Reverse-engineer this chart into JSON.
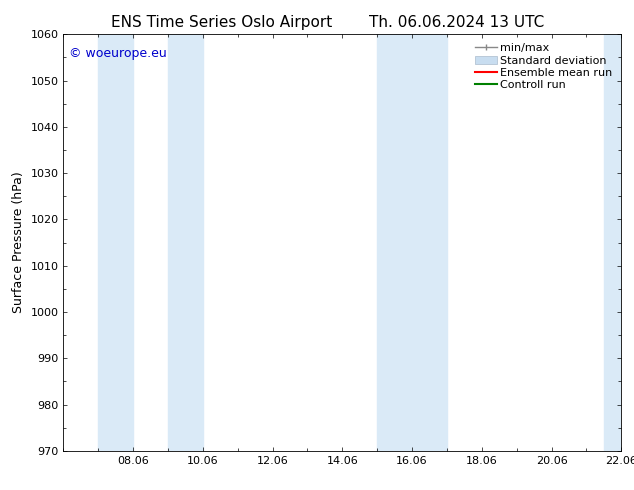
{
  "title_left": "ENS Time Series Oslo Airport",
  "title_right": "Th. 06.06.2024 13 UTC",
  "ylabel": "Surface Pressure (hPa)",
  "ylim": [
    970,
    1060
  ],
  "yticks": [
    970,
    980,
    990,
    1000,
    1010,
    1020,
    1030,
    1040,
    1050,
    1060
  ],
  "xlim": [
    0,
    16
  ],
  "xticks_labels": [
    "08.06",
    "10.06",
    "12.06",
    "14.06",
    "16.06",
    "18.06",
    "20.06",
    "22.06"
  ],
  "xtick_positions": [
    2,
    4,
    6,
    8,
    10,
    12,
    14,
    16
  ],
  "shaded_regions": [
    {
      "x_start": 1.0,
      "x_end": 2.0
    },
    {
      "x_start": 3.0,
      "x_end": 4.0
    },
    {
      "x_start": 9.0,
      "x_end": 10.0
    },
    {
      "x_start": 10.0,
      "x_end": 11.0
    },
    {
      "x_start": 15.5,
      "x_end": 16.0
    }
  ],
  "shade_color": "#daeaf7",
  "watermark_text": "© woeurope.eu",
  "watermark_color": "#0000cc",
  "background_color": "#ffffff",
  "legend_labels": [
    "min/max",
    "Standard deviation",
    "Ensemble mean run",
    "Controll run"
  ],
  "legend_colors": [
    "#888888",
    "#c8ddf0",
    "#ff0000",
    "#008000"
  ],
  "font_size_title": 11,
  "font_size_labels": 9,
  "font_size_ticks": 8,
  "font_size_legend": 8,
  "font_size_watermark": 9
}
